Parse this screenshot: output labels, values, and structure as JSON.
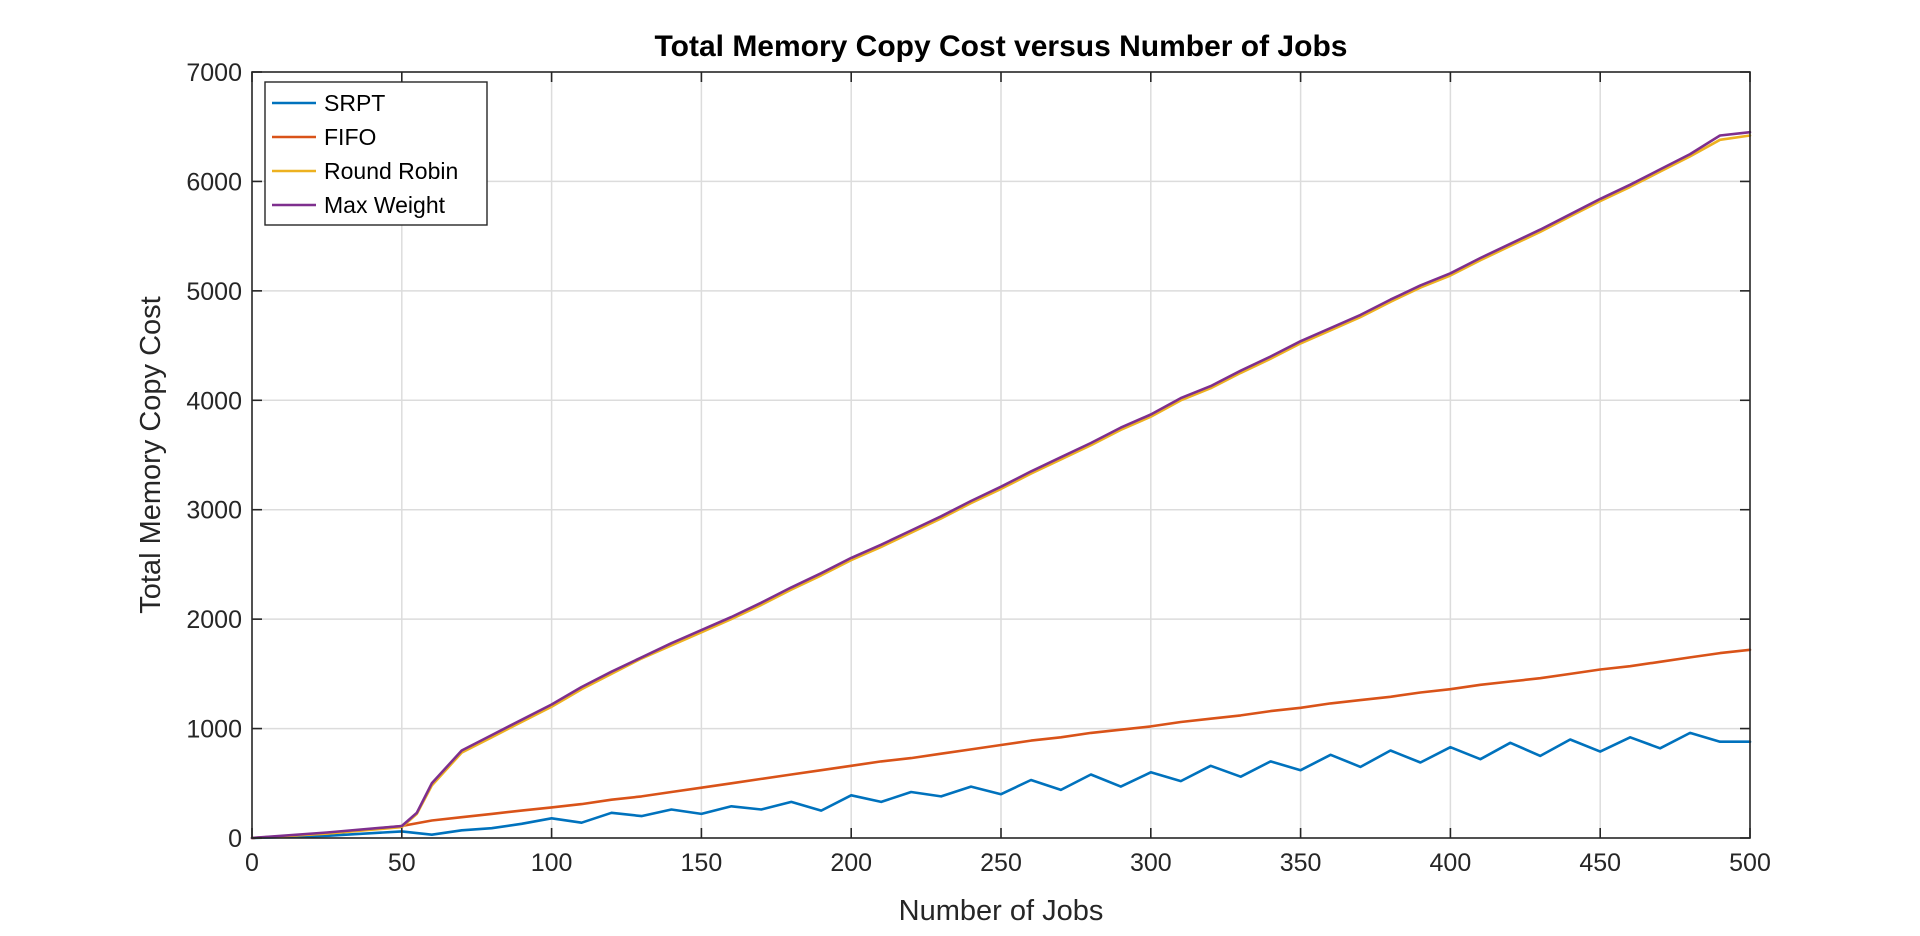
{
  "chart_data": {
    "type": "line",
    "title": "Total Memory Copy Cost versus Number of Jobs",
    "xlabel": "Number of Jobs",
    "ylabel": "Total Memory Copy Cost",
    "xlim": [
      0,
      500
    ],
    "ylim": [
      0,
      7000
    ],
    "xticks": [
      0,
      50,
      100,
      150,
      200,
      250,
      300,
      350,
      400,
      450,
      500
    ],
    "yticks": [
      0,
      1000,
      2000,
      3000,
      4000,
      5000,
      6000,
      7000
    ],
    "grid": true,
    "legend_position": "top-left",
    "series": [
      {
        "name": "SRPT",
        "color": "#0072BD",
        "x": [
          0,
          25,
          50,
          60,
          70,
          80,
          90,
          100,
          110,
          120,
          130,
          140,
          150,
          160,
          170,
          180,
          190,
          200,
          210,
          220,
          230,
          240,
          250,
          260,
          270,
          280,
          290,
          300,
          310,
          320,
          330,
          340,
          350,
          360,
          370,
          380,
          390,
          400,
          410,
          420,
          430,
          440,
          450,
          460,
          470,
          480,
          490,
          500
        ],
        "values": [
          0,
          20,
          60,
          30,
          70,
          90,
          130,
          180,
          140,
          230,
          200,
          260,
          220,
          290,
          260,
          330,
          250,
          390,
          330,
          420,
          380,
          470,
          400,
          530,
          440,
          580,
          470,
          600,
          520,
          660,
          560,
          700,
          620,
          760,
          650,
          800,
          690,
          830,
          720,
          870,
          750,
          900,
          790,
          920,
          820,
          960,
          880,
          880
        ]
      },
      {
        "name": "FIFO",
        "color": "#D95319",
        "x": [
          0,
          25,
          50,
          60,
          70,
          80,
          90,
          100,
          110,
          120,
          130,
          140,
          150,
          160,
          170,
          180,
          190,
          200,
          210,
          220,
          230,
          240,
          250,
          260,
          270,
          280,
          290,
          300,
          310,
          320,
          330,
          340,
          350,
          360,
          370,
          380,
          390,
          400,
          410,
          420,
          430,
          440,
          450,
          460,
          470,
          480,
          490,
          500
        ],
        "values": [
          0,
          40,
          110,
          160,
          190,
          220,
          250,
          280,
          310,
          350,
          380,
          420,
          460,
          500,
          540,
          580,
          620,
          660,
          700,
          730,
          770,
          810,
          850,
          890,
          920,
          960,
          990,
          1020,
          1060,
          1090,
          1120,
          1160,
          1190,
          1230,
          1260,
          1290,
          1330,
          1360,
          1400,
          1430,
          1460,
          1500,
          1540,
          1570,
          1610,
          1650,
          1690,
          1720
        ]
      },
      {
        "name": "Round Robin",
        "color": "#EDB120",
        "x": [
          0,
          25,
          50,
          55,
          60,
          70,
          80,
          90,
          100,
          110,
          120,
          130,
          140,
          150,
          160,
          170,
          180,
          190,
          200,
          210,
          220,
          230,
          240,
          250,
          260,
          270,
          280,
          290,
          300,
          310,
          320,
          330,
          340,
          350,
          360,
          370,
          380,
          390,
          400,
          410,
          420,
          430,
          440,
          450,
          460,
          470,
          480,
          490,
          500
        ],
        "values": [
          0,
          40,
          100,
          220,
          480,
          780,
          920,
          1060,
          1200,
          1360,
          1500,
          1640,
          1760,
          1880,
          2000,
          2130,
          2270,
          2400,
          2540,
          2660,
          2790,
          2920,
          3060,
          3190,
          3330,
          3460,
          3590,
          3730,
          3850,
          4000,
          4110,
          4250,
          4380,
          4520,
          4640,
          4760,
          4900,
          5030,
          5140,
          5280,
          5410,
          5540,
          5680,
          5820,
          5950,
          6090,
          6230,
          6380,
          6420
        ]
      },
      {
        "name": "Max Weight",
        "color": "#7E2F8E",
        "x": [
          0,
          25,
          50,
          55,
          60,
          70,
          80,
          90,
          100,
          110,
          120,
          130,
          140,
          150,
          160,
          170,
          180,
          190,
          200,
          210,
          220,
          230,
          240,
          250,
          260,
          270,
          280,
          290,
          300,
          310,
          320,
          330,
          340,
          350,
          360,
          370,
          380,
          390,
          400,
          410,
          420,
          430,
          440,
          450,
          460,
          470,
          480,
          490,
          500
        ],
        "values": [
          0,
          50,
          110,
          230,
          500,
          800,
          940,
          1080,
          1220,
          1380,
          1520,
          1650,
          1780,
          1900,
          2020,
          2150,
          2290,
          2420,
          2560,
          2680,
          2810,
          2940,
          3080,
          3210,
          3350,
          3480,
          3610,
          3750,
          3870,
          4020,
          4130,
          4270,
          4400,
          4540,
          4660,
          4780,
          4920,
          5050,
          5160,
          5300,
          5430,
          5560,
          5700,
          5840,
          5970,
          6110,
          6250,
          6420,
          6450
        ]
      }
    ]
  }
}
